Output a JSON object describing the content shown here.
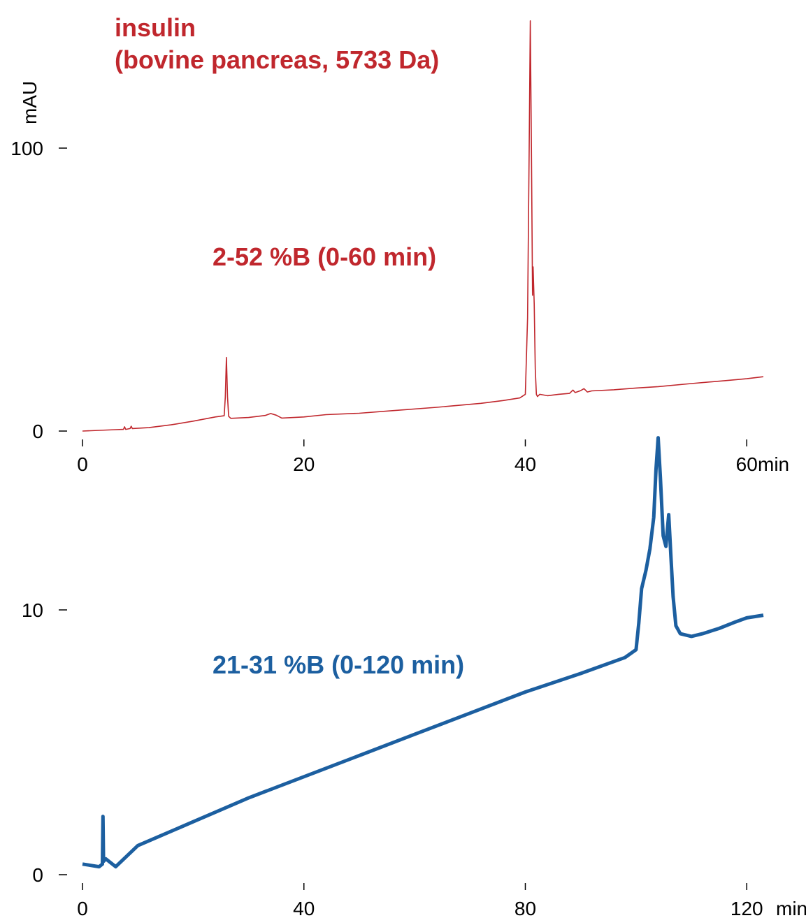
{
  "chart_data": [
    {
      "type": "line",
      "title": "insulin",
      "subtitle": "(bovine pancreas, 5733 Da)",
      "annotation": "2-52 %B (0-60 min)",
      "ylabel": "mAU",
      "xunit": "min",
      "xlim": [
        0,
        61.5
      ],
      "ylim": [
        0,
        145
      ],
      "x_ticks": [
        0,
        20,
        40,
        60
      ],
      "y_ticks": [
        0,
        100
      ],
      "grid": false,
      "color": "#c0272d",
      "series": [
        {
          "points": [
            [
              0,
              0
            ],
            [
              3,
              0.5
            ],
            [
              3.7,
              0.6
            ],
            [
              3.8,
              1.5
            ],
            [
              3.9,
              0.6
            ],
            [
              4.3,
              0.9
            ],
            [
              4.4,
              1.7
            ],
            [
              4.5,
              0.9
            ],
            [
              6,
              1.2
            ],
            [
              8,
              2.2
            ],
            [
              10,
              3.5
            ],
            [
              12,
              5.0
            ],
            [
              12.8,
              5.4
            ],
            [
              12.9,
              12
            ],
            [
              13.0,
              26
            ],
            [
              13.1,
              12
            ],
            [
              13.2,
              5.2
            ],
            [
              13.4,
              4.5
            ],
            [
              15,
              4.8
            ],
            [
              16.5,
              5.5
            ],
            [
              17,
              6.2
            ],
            [
              17.5,
              5.6
            ],
            [
              18,
              4.6
            ],
            [
              20,
              5.0
            ],
            [
              22,
              5.8
            ],
            [
              25,
              6.3
            ],
            [
              28,
              7.2
            ],
            [
              32,
              8.4
            ],
            [
              36,
              9.8
            ],
            [
              38,
              10.8
            ],
            [
              39.5,
              11.7
            ],
            [
              40.0,
              13
            ],
            [
              40.2,
              40
            ],
            [
              40.35,
              100
            ],
            [
              40.45,
              145
            ],
            [
              40.55,
              100
            ],
            [
              40.65,
              48
            ],
            [
              40.7,
              58
            ],
            [
              40.8,
              45
            ],
            [
              40.9,
              22
            ],
            [
              41.0,
              13
            ],
            [
              41.1,
              12.2
            ],
            [
              41.3,
              13
            ],
            [
              42,
              12.5
            ],
            [
              43,
              13.0
            ],
            [
              44,
              13.3
            ],
            [
              44.3,
              14.5
            ],
            [
              44.5,
              13.6
            ],
            [
              45,
              14.3
            ],
            [
              45.3,
              15.0
            ],
            [
              45.6,
              13.8
            ],
            [
              46,
              14.2
            ],
            [
              48,
              14.6
            ],
            [
              50,
              15.2
            ],
            [
              52,
              15.7
            ],
            [
              55,
              16.8
            ],
            [
              58,
              17.8
            ],
            [
              60,
              18.5
            ],
            [
              61.5,
              19.2
            ]
          ]
        }
      ]
    },
    {
      "type": "line",
      "annotation": "21-31 %B (0-120 min)",
      "xunit": "min",
      "xlim": [
        0,
        123
      ],
      "ylim": [
        0,
        15
      ],
      "x_ticks": [
        0,
        40,
        80,
        120
      ],
      "y_ticks": [
        0,
        10
      ],
      "grid": false,
      "color": "#1c5fa0",
      "series": [
        {
          "points": [
            [
              0,
              0.4
            ],
            [
              3,
              0.3
            ],
            [
              3.6,
              0.4
            ],
            [
              3.7,
              2.2
            ],
            [
              3.8,
              0.5
            ],
            [
              4.2,
              0.6
            ],
            [
              6,
              0.3
            ],
            [
              10,
              1.1
            ],
            [
              20,
              2.0
            ],
            [
              30,
              2.9
            ],
            [
              40,
              3.7
            ],
            [
              50,
              4.5
            ],
            [
              60,
              5.3
            ],
            [
              70,
              6.1
            ],
            [
              80,
              6.9
            ],
            [
              90,
              7.6
            ],
            [
              98,
              8.2
            ],
            [
              100,
              8.5
            ],
            [
              100.5,
              9.5
            ],
            [
              101,
              10.8
            ],
            [
              101.8,
              11.5
            ],
            [
              102.5,
              12.3
            ],
            [
              103.2,
              13.5
            ],
            [
              103.6,
              15.3
            ],
            [
              104,
              16.5
            ],
            [
              104.4,
              15.0
            ],
            [
              104.9,
              12.8
            ],
            [
              105.4,
              12.4
            ],
            [
              105.9,
              13.6
            ],
            [
              106.3,
              12.0
            ],
            [
              106.7,
              10.5
            ],
            [
              107.2,
              9.4
            ],
            [
              108,
              9.1
            ],
            [
              110,
              9.0
            ],
            [
              112,
              9.1
            ],
            [
              115,
              9.3
            ],
            [
              118,
              9.55
            ],
            [
              120,
              9.7
            ],
            [
              123,
              9.8
            ]
          ]
        }
      ]
    }
  ]
}
